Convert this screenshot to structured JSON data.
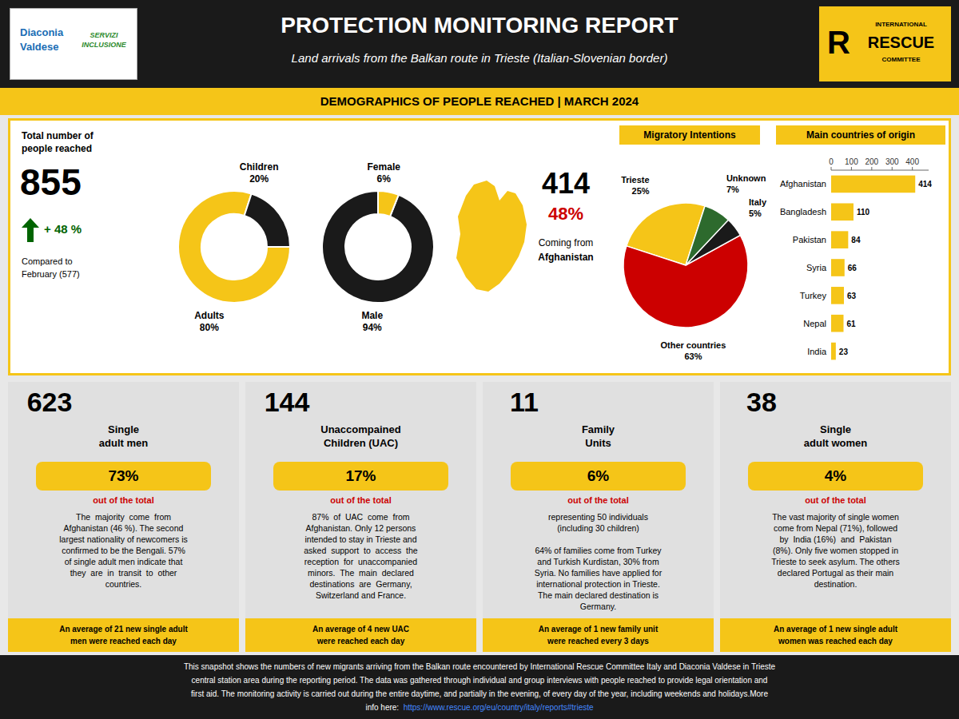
{
  "title": "PROTECTION MONITORING REPORT",
  "subtitle": "Land arrivals from the Balkan route in Trieste (Italian-Slovenian border)",
  "section_header": "DEMOGRAPHICS OF PEOPLE REACHED | MARCH 2024",
  "logos": {
    "left": [
      "Diaconia",
      "Valdese",
      "SERVIZI\nINCLUSIONE"
    ],
    "right": [
      "R",
      "INTERNATIONAL",
      "RESCUE",
      "COMMITTEE"
    ]
  },
  "total": {
    "label": [
      "Total number of",
      "people reached"
    ],
    "value": "855",
    "increase": "+ 48 %",
    "compare": [
      "Compared to",
      "February (577)"
    ]
  },
  "afghanistan": {
    "value": "414",
    "pct": "48%",
    "label": [
      "Coming from",
      "Afghanistan"
    ]
  },
  "chart_data": [
    {
      "type": "donut",
      "categories": [
        "Adults",
        "Children"
      ],
      "values": [
        80,
        20
      ],
      "value_labels": [
        "80%",
        "20%"
      ],
      "colors": [
        "#f5c518",
        "#1a1a1a"
      ]
    },
    {
      "type": "donut",
      "categories": [
        "Male",
        "Female"
      ],
      "values": [
        94,
        6
      ],
      "value_labels": [
        "94%",
        "6%"
      ],
      "colors": [
        "#1a1a1a",
        "#f5c518"
      ]
    },
    {
      "type": "pie",
      "title": "Migratory Intentions",
      "categories": [
        "Trieste",
        "Other countries",
        "Italy",
        "Unknown"
      ],
      "values": [
        25,
        63,
        5,
        7
      ],
      "value_labels": [
        "25%",
        "63%",
        "5%",
        "7%"
      ],
      "colors": [
        "#f5c518",
        "#cc0000",
        "#1a1a1a",
        "#2d6a2d"
      ]
    },
    {
      "type": "bar",
      "orientation": "horizontal",
      "title": "Main countries of origin",
      "categories": [
        "Afghanistan",
        "Bangladesh",
        "Pakistan",
        "Syria",
        "Turkey",
        "Nepal",
        "India"
      ],
      "values": [
        414,
        110,
        84,
        66,
        63,
        61,
        23
      ],
      "color": "#f5c518",
      "xlim": [
        0,
        480
      ],
      "xticks": [
        0,
        100,
        200,
        300,
        400
      ],
      "data_labels": true
    }
  ],
  "card_note": "out of the total",
  "cards": [
    {
      "number": "623",
      "label": "Single\nadult men",
      "pct": "73%",
      "desc_lines": [
        "The  majority  come  from",
        "Afghanistan (46 %). The second",
        "largest nationality of newcomers is",
        "confirmed to be the Bengali. 57%",
        "of single adult men indicate that",
        "they  are  in  transit  to  other",
        "countries."
      ],
      "footer_lines": [
        "An average of 21 new single adult",
        "men were reached each day"
      ]
    },
    {
      "number": "144",
      "label": "Unaccompained\nChildren (UAC)",
      "pct": "17%",
      "desc_lines": [
        "87%  of  UAC  come  from",
        "Afghanistan. Only 12 persons",
        "intended to stay in Trieste and",
        "asked  support  to  access  the",
        "reception  for  unaccompanied",
        "minors.  The  main  declared",
        "destinations  are  Germany,",
        "Switzerland and France."
      ],
      "footer_lines": [
        "An average of 4 new UAC",
        "were reached each day"
      ]
    },
    {
      "number": "11",
      "label": "Family\nUnits",
      "pct": "6%",
      "desc_lines": [
        "representing 50 individuals",
        "(including 30 children)",
        "",
        "64% of families come from Turkey",
        "and Turkish Kurdistan, 30% from",
        "Syria. No families have applied for",
        "international protection in Trieste.",
        "The main declared destination is",
        "Germany."
      ],
      "footer_lines": [
        "An average of 1 new family unit",
        "were reached every 3 days"
      ]
    },
    {
      "number": "38",
      "label": "Single\nadult women",
      "pct": "4%",
      "desc_lines": [
        "The vast majority of single women",
        "come from Nepal (71%), followed",
        "by  India (16%)  and  Pakistan",
        "(8%). Only five women stopped in",
        "Trieste to seek asylum. The others",
        "declared Portugal as their main",
        "destination."
      ],
      "footer_lines": [
        "An average of 1 new single adult",
        "women was reached each day"
      ]
    }
  ],
  "footer": {
    "lines": [
      "This snapshot shows the numbers of new migrants arriving from the Balkan route encountered by International Rescue Committee Italy and Diaconia Valdese in Trieste",
      "central station area during the reporting period. The data was gathered through individual and group interviews with people reached to provide legal orientation and",
      "first aid. The monitoring activity is carried out during the entire daytime, and partially in the evening, of every day of the year, including weekends and holidays.More"
    ],
    "link_line": [
      "info here:  ",
      "https://www.rescue.org/eu/country/italy/reports#trieste"
    ]
  },
  "colors": {
    "background": "#e8e8e8",
    "header": "#1a1a1a",
    "accent": "#f5c518",
    "red": "#cc0000",
    "card": "#e0e0e0",
    "footer": "#1a1a1a",
    "link": "#4488ff",
    "positive": "#006400",
    "logo_blue": "#1a6db5",
    "logo_green": "#2d8a2d"
  }
}
